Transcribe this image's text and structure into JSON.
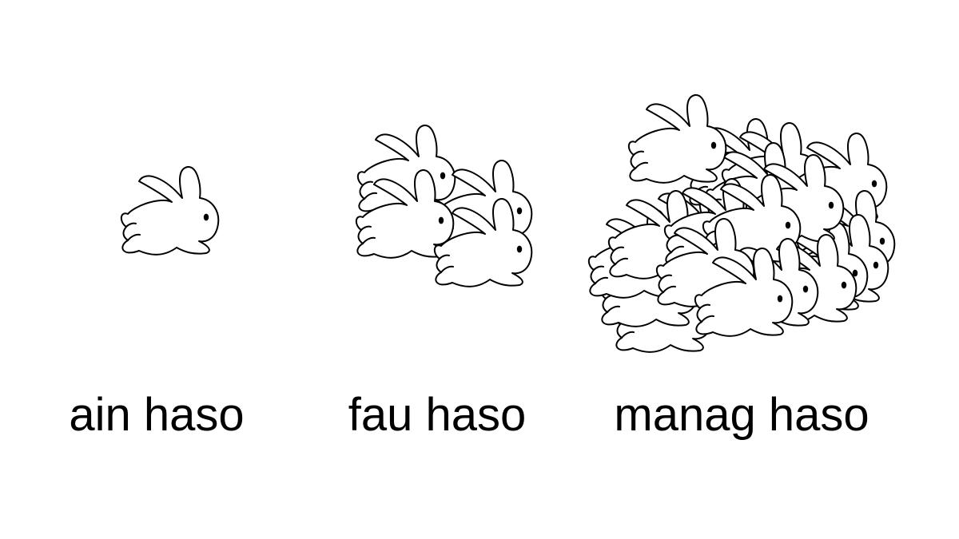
{
  "groups": [
    {
      "label": "ain haso",
      "count": 1
    },
    {
      "label": "fau haso",
      "count": 4
    },
    {
      "label": "manag haso",
      "count": 20
    }
  ],
  "colors": {
    "outline": "#000000",
    "fill": "#ffffff",
    "text": "#000000"
  },
  "icon": "rabbit-icon"
}
